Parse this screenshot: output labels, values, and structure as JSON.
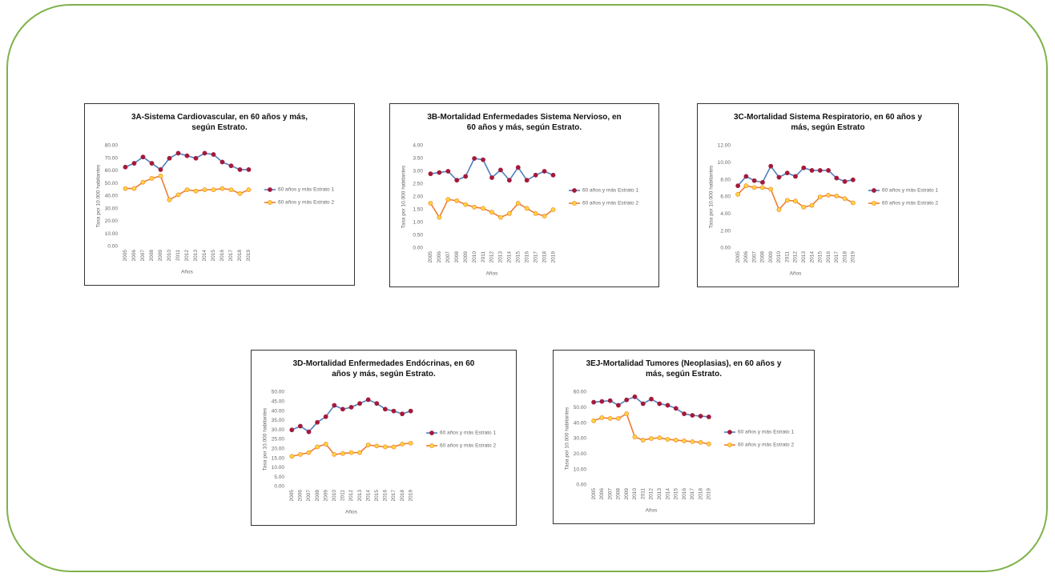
{
  "chart_data": [
    {
      "type": "line",
      "title": "3A-Sistema Cardiovascular, en 60 años y más, según Estrato.",
      "x_label": "Años",
      "y_label": "Tasa por 10.000 habitantes",
      "categories": [
        "2005",
        "2006",
        "2007",
        "2008",
        "2009",
        "2010",
        "2011",
        "2012",
        "2013",
        "2014",
        "2015",
        "2016",
        "2017",
        "2018",
        "2019"
      ],
      "series": [
        {
          "name": "60 años y más Estrato 1",
          "color": "#4f81bd",
          "marker_color": "#a5193a",
          "values": [
            63,
            66,
            71,
            66,
            61,
            70,
            74,
            72,
            70,
            74,
            73,
            67,
            64,
            61,
            61
          ]
        },
        {
          "name": "60 años y más Estrato 2",
          "color": "#ed7d31",
          "marker_color": "#ffd43b",
          "values": [
            46,
            46,
            51,
            54,
            56,
            37,
            41,
            45,
            44,
            45,
            45,
            46,
            45,
            42,
            45
          ]
        }
      ],
      "ylim": [
        0,
        80
      ],
      "yticks": [
        {
          "value": 0,
          "label": "0.00"
        },
        {
          "value": 10,
          "label": "10.00"
        },
        {
          "value": 20,
          "label": "20.00"
        },
        {
          "value": 30,
          "label": "30.00"
        },
        {
          "value": 40,
          "label": "40.00"
        },
        {
          "value": 50,
          "label": "50.00"
        },
        {
          "value": 60,
          "label": "60.00"
        },
        {
          "value": 70,
          "label": "70.00"
        },
        {
          "value": 80,
          "label": "80.00"
        }
      ],
      "grid": false,
      "legend": "right"
    },
    {
      "type": "line",
      "title": "3B-Mortalidad Enfermedades Sistema Nervioso, en 60 años y más, según Estrato.",
      "x_label": "Años",
      "y_label": "Tasa por 10.000 habitantes",
      "categories": [
        "2005",
        "2006",
        "2007",
        "2008",
        "2009",
        "2010",
        "2011",
        "2012",
        "2013",
        "2014",
        "2015",
        "2016",
        "2017",
        "2018",
        "2019"
      ],
      "series": [
        {
          "name": "60 años y más Estrato 1",
          "color": "#4f81bd",
          "marker_color": "#a5193a",
          "values": [
            2.9,
            2.95,
            3.0,
            2.65,
            2.8,
            3.5,
            3.45,
            2.75,
            3.05,
            2.65,
            3.15,
            2.65,
            2.85,
            3.0,
            2.85
          ]
        },
        {
          "name": "60 años y más Estrato 2",
          "color": "#ed7d31",
          "marker_color": "#ffd43b",
          "values": [
            1.75,
            1.2,
            1.9,
            1.85,
            1.7,
            1.6,
            1.55,
            1.4,
            1.2,
            1.35,
            1.75,
            1.55,
            1.35,
            1.25,
            1.5
          ]
        }
      ],
      "ylim": [
        0,
        4
      ],
      "yticks": [
        {
          "value": 0,
          "label": "0.00"
        },
        {
          "value": 0.5,
          "label": "0.50"
        },
        {
          "value": 1,
          "label": "1.00"
        },
        {
          "value": 1.5,
          "label": "1.50"
        },
        {
          "value": 2,
          "label": "2.00"
        },
        {
          "value": 2.5,
          "label": "2.50"
        },
        {
          "value": 3,
          "label": "3.00"
        },
        {
          "value": 3.5,
          "label": "3.50"
        },
        {
          "value": 4,
          "label": "4.00"
        }
      ],
      "grid": false,
      "legend": "right"
    },
    {
      "type": "line",
      "title": "3C-Mortalidad Sistema Respiratorio, en 60 años y más, según Estrato",
      "x_label": "Años",
      "y_label": "Tasa por 10.000 habitantes",
      "categories": [
        "2005",
        "2006",
        "2007",
        "2008",
        "2009",
        "2010",
        "2011",
        "2012",
        "2013",
        "2014",
        "2015",
        "2016",
        "2017",
        "2018",
        "2019"
      ],
      "series": [
        {
          "name": "60 años y más Estrato 1",
          "color": "#4f81bd",
          "marker_color": "#a5193a",
          "values": [
            7.3,
            8.4,
            7.9,
            7.7,
            9.6,
            8.3,
            8.8,
            8.4,
            9.4,
            9.1,
            9.1,
            9.1,
            8.2,
            7.8,
            8.0
          ]
        },
        {
          "name": "60 años y más Estrato 2",
          "color": "#ed7d31",
          "marker_color": "#ffd43b",
          "values": [
            6.3,
            7.3,
            7.1,
            7.1,
            6.9,
            4.5,
            5.6,
            5.5,
            4.8,
            5.0,
            6.0,
            6.2,
            6.1,
            5.8,
            5.3
          ]
        }
      ],
      "ylim": [
        0,
        12
      ],
      "yticks": [
        {
          "value": 0,
          "label": "0.00"
        },
        {
          "value": 2,
          "label": "2.00"
        },
        {
          "value": 4,
          "label": "4.00"
        },
        {
          "value": 6,
          "label": "6.00"
        },
        {
          "value": 8,
          "label": "8.00"
        },
        {
          "value": 10,
          "label": "10.00"
        },
        {
          "value": 12,
          "label": "12.00"
        }
      ],
      "grid": false,
      "legend": "right"
    },
    {
      "type": "line",
      "title": "3D-Mortalidad Enfermedades Endócrinas, en 60 años y más, según Estrato.",
      "x_label": "Años",
      "y_label": "Tasa por 10.000 habitantes",
      "categories": [
        "2005",
        "2006",
        "2007",
        "2008",
        "2009",
        "2010",
        "2011",
        "2012",
        "2013",
        "2014",
        "2015",
        "2016",
        "2017",
        "2018",
        "2019"
      ],
      "series": [
        {
          "name": "60 años y más Estrato 1",
          "color": "#4f81bd",
          "marker_color": "#a5193a",
          "values": [
            30,
            32,
            29,
            34,
            37,
            43,
            41,
            42,
            44,
            46,
            44,
            41,
            40,
            38.5,
            40
          ]
        },
        {
          "name": "60 años y más Estrato 2",
          "color": "#ed7d31",
          "marker_color": "#ffd43b",
          "values": [
            16,
            17,
            18,
            21,
            22.5,
            17,
            17.5,
            18,
            18,
            22,
            21.5,
            21,
            21,
            22.5,
            23
          ]
        }
      ],
      "ylim": [
        0,
        50
      ],
      "yticks": [
        {
          "value": 0,
          "label": "0.00"
        },
        {
          "value": 5,
          "label": "5.00"
        },
        {
          "value": 10,
          "label": "10.00"
        },
        {
          "value": 15,
          "label": "15.00"
        },
        {
          "value": 20,
          "label": "20.00"
        },
        {
          "value": 25,
          "label": "25.00"
        },
        {
          "value": 30,
          "label": "30.00"
        },
        {
          "value": 35,
          "label": "35.00"
        },
        {
          "value": 40,
          "label": "40.00"
        },
        {
          "value": 45,
          "label": "45.00"
        },
        {
          "value": 50,
          "label": "50.00"
        }
      ],
      "grid": false,
      "legend": "right"
    },
    {
      "type": "line",
      "title": "3EJ-Mortalidad Tumores (Neoplasias), en 60 años y más, según Estrato.",
      "x_label": "Años",
      "y_label": "Tasa por 10.000 habitantes",
      "categories": [
        "2005",
        "2006",
        "2007",
        "2008",
        "2009",
        "2010",
        "2011",
        "2012",
        "2013",
        "2014",
        "2015",
        "2016",
        "2017",
        "2018",
        "2019"
      ],
      "series": [
        {
          "name": "60 años y más Estrato 1",
          "color": "#4f81bd",
          "marker_color": "#a5193a",
          "values": [
            53.5,
            54,
            54.5,
            51.5,
            55,
            57,
            52.5,
            55.5,
            52.5,
            51.5,
            49.5,
            46,
            45,
            44.5,
            44
          ]
        },
        {
          "name": "60 años y más Estrato 2",
          "color": "#ed7d31",
          "marker_color": "#ffd43b",
          "values": [
            41.5,
            43.5,
            43,
            43,
            46,
            31,
            29,
            30,
            30.5,
            29.5,
            29,
            28.5,
            28,
            27.5,
            26.5
          ]
        }
      ],
      "ylim": [
        0,
        60
      ],
      "yticks": [
        {
          "value": 0,
          "label": "0.00"
        },
        {
          "value": 10,
          "label": "10.00"
        },
        {
          "value": 20,
          "label": "20.00"
        },
        {
          "value": 30,
          "label": "30.00"
        },
        {
          "value": 40,
          "label": "40.00"
        },
        {
          "value": 50,
          "label": "50.00"
        },
        {
          "value": 60,
          "label": "60.00"
        }
      ],
      "grid": false,
      "legend": "right"
    }
  ]
}
